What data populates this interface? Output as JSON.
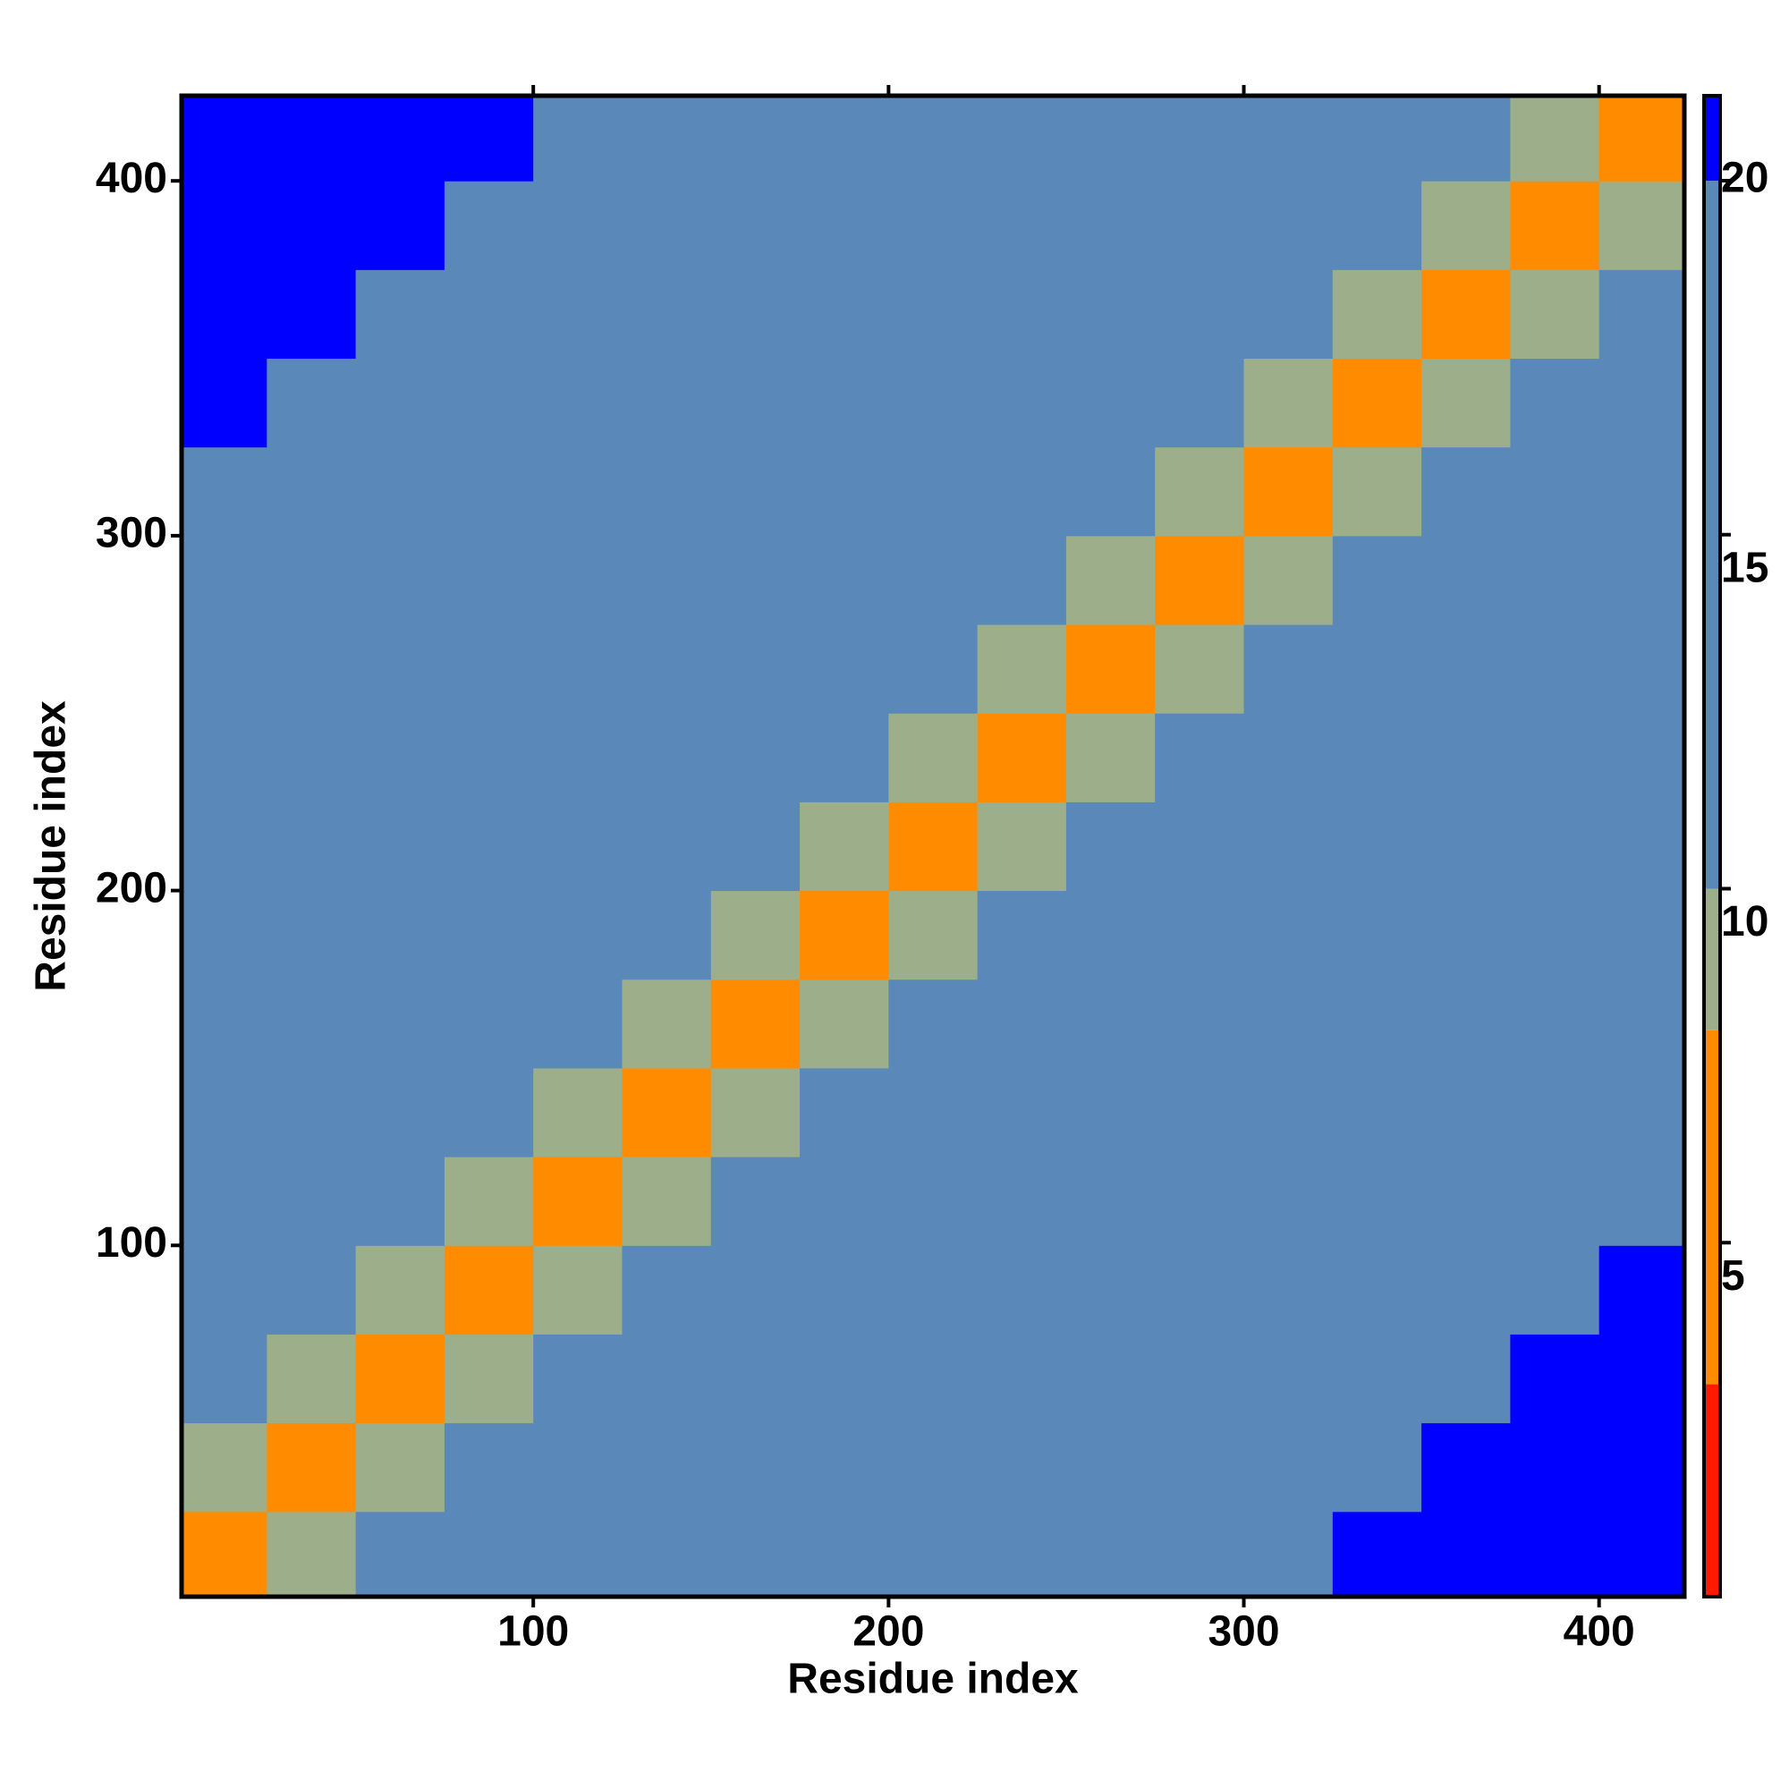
{
  "chart_data": {
    "type": "heatmap",
    "x_label": "Residue index",
    "y_label": "Residue index",
    "bins": [
      0,
      25,
      50,
      75,
      100,
      125,
      150,
      175,
      200,
      225,
      250,
      275,
      300,
      325,
      350,
      375,
      400,
      425
    ],
    "xlim": [
      1,
      424
    ],
    "ylim": [
      1,
      424
    ],
    "xticks": [
      100,
      200,
      300,
      400
    ],
    "yticks": [
      100,
      200,
      300,
      400
    ],
    "clim": [
      0,
      21.2
    ],
    "cticks": [
      5,
      10,
      15,
      20
    ],
    "colorscale": [
      [
        3,
        "#ff1a00"
      ],
      [
        8,
        "#ff8c00"
      ],
      [
        10,
        "#9caf8a"
      ],
      [
        20,
        "#5a88b8"
      ],
      [
        21.2,
        "#0000ff"
      ]
    ],
    "values": [
      [
        4,
        10,
        14,
        17,
        17,
        17,
        17,
        17,
        17,
        17,
        19,
        19,
        19,
        21,
        21,
        21,
        21
      ],
      [
        10,
        4,
        10,
        14,
        17,
        17,
        17,
        17,
        17,
        17,
        17,
        19,
        19,
        19,
        21,
        21,
        21
      ],
      [
        14,
        10,
        4,
        10,
        14,
        17,
        17,
        17,
        17,
        17,
        17,
        17,
        19,
        19,
        19,
        21,
        21
      ],
      [
        17,
        14,
        10,
        4,
        10,
        14,
        17,
        17,
        17,
        17,
        17,
        17,
        17,
        19,
        19,
        19,
        21
      ],
      [
        17,
        17,
        14,
        10,
        4,
        10,
        14,
        17,
        17,
        17,
        17,
        17,
        17,
        17,
        19,
        19,
        19
      ],
      [
        17,
        17,
        17,
        14,
        10,
        4,
        10,
        14,
        17,
        17,
        17,
        17,
        17,
        17,
        17,
        19,
        19
      ],
      [
        17,
        17,
        17,
        17,
        14,
        10,
        4,
        10,
        14,
        17,
        17,
        17,
        17,
        17,
        17,
        17,
        19
      ],
      [
        17,
        17,
        17,
        17,
        17,
        14,
        10,
        4,
        10,
        14,
        17,
        17,
        17,
        17,
        17,
        17,
        17
      ],
      [
        17,
        17,
        17,
        17,
        17,
        17,
        14,
        10,
        4,
        10,
        14,
        17,
        17,
        17,
        17,
        17,
        17
      ],
      [
        17,
        17,
        17,
        17,
        17,
        17,
        17,
        14,
        10,
        4,
        10,
        14,
        17,
        17,
        17,
        17,
        17
      ],
      [
        19,
        17,
        17,
        17,
        17,
        17,
        17,
        17,
        14,
        10,
        4,
        10,
        14,
        17,
        17,
        17,
        17
      ],
      [
        19,
        19,
        17,
        17,
        17,
        17,
        17,
        17,
        17,
        14,
        10,
        4,
        10,
        14,
        17,
        17,
        17
      ],
      [
        19,
        19,
        19,
        17,
        17,
        17,
        17,
        17,
        17,
        17,
        14,
        10,
        4,
        10,
        14,
        17,
        17
      ],
      [
        21,
        19,
        19,
        19,
        17,
        17,
        17,
        17,
        17,
        17,
        17,
        14,
        10,
        4,
        10,
        14,
        17
      ],
      [
        21,
        21,
        19,
        19,
        19,
        17,
        17,
        17,
        17,
        17,
        17,
        17,
        14,
        10,
        4,
        10,
        14
      ],
      [
        21,
        21,
        21,
        19,
        19,
        19,
        17,
        17,
        17,
        17,
        17,
        17,
        17,
        14,
        10,
        4,
        10
      ],
      [
        21,
        21,
        21,
        21,
        19,
        19,
        19,
        17,
        17,
        17,
        17,
        17,
        17,
        17,
        14,
        10,
        4
      ]
    ]
  }
}
